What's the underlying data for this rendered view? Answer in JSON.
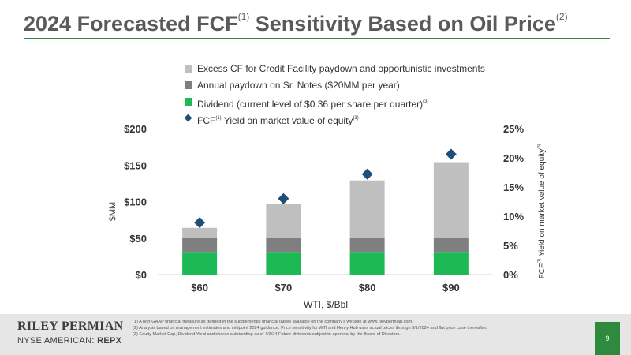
{
  "slide": {
    "title_pre": "2024 Forecasted FCF",
    "title_sup1": "(1)",
    "title_mid": " Sensitivity Based on Oil Price",
    "title_sup2": "(2)",
    "page_number": "9"
  },
  "legend": {
    "excess": "Excess CF for Credit Facility paydown and opportunistic investments",
    "notes": "Annual paydown on Sr. Notes ($20MM per year)",
    "dividend": "Dividend (current level of $0.36 per share per quarter)",
    "dividend_sup": "(3)",
    "yield_pre": "FCF",
    "yield_sup1": "(1)",
    "yield_post": " Yield on market value of equity",
    "yield_sup2": "(3)"
  },
  "colors": {
    "dividend": "#1db954",
    "notes": "#7f7f7f",
    "excess": "#bfbfbf",
    "yield_marker": "#1f4e79",
    "accent": "#2e8b3d"
  },
  "chart_data": {
    "type": "bar",
    "stacked": true,
    "categories": [
      "$60",
      "$70",
      "$80",
      "$90"
    ],
    "series": [
      {
        "name": "Dividend (current level of $0.36 per share per quarter)",
        "values": [
          30,
          30,
          30,
          30
        ]
      },
      {
        "name": "Annual paydown on Sr. Notes ($20MM per year)",
        "values": [
          20,
          20,
          20,
          20
        ]
      },
      {
        "name": "Excess CF for Credit Facility paydown and opportunistic investments",
        "values": [
          14,
          47,
          79,
          104
        ]
      }
    ],
    "secondary_series": {
      "name": "FCF Yield on market value of equity",
      "type": "scatter",
      "marker": "diamond",
      "values": [
        8.9,
        13.0,
        17.2,
        20.6
      ]
    },
    "xlabel": "WTI, $/Bbl",
    "ylabel": "$MM",
    "ylim": [
      0,
      200
    ],
    "yticks": [
      "$0",
      "$50",
      "$100",
      "$150",
      "$200"
    ],
    "y2label_pre": "FCF",
    "y2label_sup1": "(1)",
    "y2label_post": " Yield on market value of equity",
    "y2label_sup2": "(3)",
    "y2lim": [
      0,
      25
    ],
    "y2ticks": [
      "0%",
      "5%",
      "10%",
      "15%",
      "20%",
      "25%"
    ],
    "grid": false,
    "legend_position": "top"
  },
  "footer": {
    "company": "RILEY PERMIAN",
    "exchange": "NYSE AMERICAN: ",
    "ticker": "REPX",
    "footnotes": [
      "(1)  A non-GAAP financial measure as defined in the supplemental financial tables available on the company's website at www.rileypermian.com.",
      "(2)  Analysis based on management estimates and midpoint 2024 guidance. Price sensitivity for WTI and Henry Hub uses actual prices through 3/1/2024 and flat price case thereafter.",
      "(3)  Equity Market Cap, Dividend Yield and shares outstanding as of 4/3/24 Future dividends subject to approval by the Board of Directors."
    ]
  }
}
